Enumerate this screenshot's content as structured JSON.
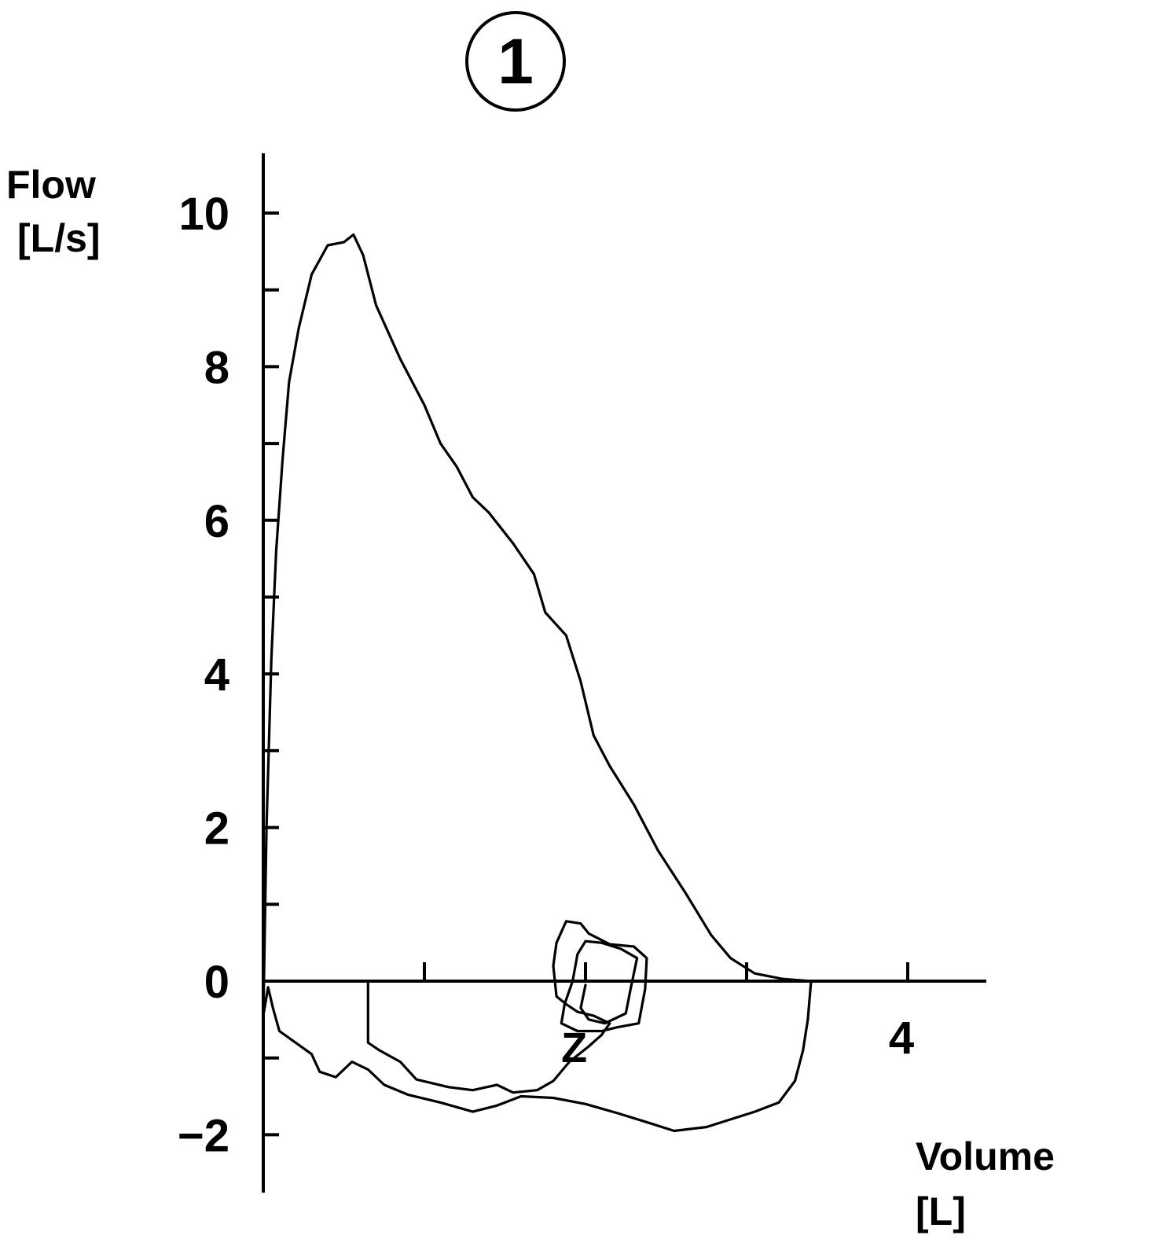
{
  "chart_data": {
    "type": "line",
    "title": "①",
    "xlabel": "Volume",
    "xunit": "[L]",
    "ylabel": "Flow",
    "yunit": "[L/s]",
    "xlim": [
      0,
      4.5
    ],
    "ylim": [
      -2.7,
      10.7
    ],
    "x_tick_values": [
      0,
      1,
      2,
      3,
      4
    ],
    "x_tick_labels": [
      {
        "value": 4,
        "text": "4"
      }
    ],
    "y_tick_values": [
      -2,
      -1,
      0,
      1,
      2,
      3,
      4,
      5,
      6,
      7,
      8,
      9,
      10
    ],
    "y_tick_labels": [
      {
        "value": 10,
        "text": "10"
      },
      {
        "value": 8,
        "text": "8"
      },
      {
        "value": 6,
        "text": "6"
      },
      {
        "value": 4,
        "text": "4"
      },
      {
        "value": 2,
        "text": "2"
      },
      {
        "value": 0,
        "text": "0"
      },
      {
        "value": -2,
        "text": "−2"
      }
    ],
    "annotations": [
      {
        "text": "Z",
        "x": 1.93,
        "y": -0.85
      }
    ],
    "grid": false,
    "series": [
      {
        "points": [
          [
            0,
            -0.5
          ],
          [
            0.02,
            2.0
          ],
          [
            0.05,
            4.2
          ],
          [
            0.08,
            5.6
          ],
          [
            0.12,
            6.8
          ],
          [
            0.16,
            7.8
          ],
          [
            0.22,
            8.5
          ],
          [
            0.3,
            9.2
          ],
          [
            0.4,
            9.58
          ],
          [
            0.5,
            9.62
          ],
          [
            0.56,
            9.72
          ],
          [
            0.62,
            9.45
          ],
          [
            0.7,
            8.8
          ],
          [
            0.85,
            8.1
          ],
          [
            1.0,
            7.5
          ],
          [
            1.1,
            7.0
          ],
          [
            1.2,
            6.7
          ],
          [
            1.3,
            6.3
          ],
          [
            1.4,
            6.1
          ],
          [
            1.55,
            5.7
          ],
          [
            1.68,
            5.3
          ],
          [
            1.75,
            4.8
          ],
          [
            1.88,
            4.5
          ],
          [
            1.97,
            3.9
          ],
          [
            2.05,
            3.2
          ],
          [
            2.15,
            2.8
          ],
          [
            2.3,
            2.3
          ],
          [
            2.45,
            1.7
          ],
          [
            2.62,
            1.15
          ],
          [
            2.78,
            0.6
          ],
          [
            2.9,
            0.3
          ],
          [
            3.05,
            0.1
          ],
          [
            3.22,
            0.03
          ],
          [
            3.4,
            0.0
          ]
        ]
      },
      {
        "points": [
          [
            3.4,
            0.0
          ],
          [
            3.38,
            -0.5
          ],
          [
            3.35,
            -0.9
          ],
          [
            3.3,
            -1.3
          ],
          [
            3.2,
            -1.58
          ],
          [
            3.05,
            -1.7
          ],
          [
            2.9,
            -1.8
          ],
          [
            2.75,
            -1.9
          ],
          [
            2.55,
            -1.95
          ],
          [
            2.4,
            -1.85
          ],
          [
            2.2,
            -1.72
          ],
          [
            2.0,
            -1.6
          ],
          [
            1.8,
            -1.52
          ],
          [
            1.6,
            -1.5
          ],
          [
            1.45,
            -1.62
          ],
          [
            1.3,
            -1.7
          ],
          [
            1.1,
            -1.58
          ],
          [
            0.9,
            -1.48
          ],
          [
            0.75,
            -1.35
          ],
          [
            0.65,
            -1.15
          ],
          [
            0.55,
            -1.05
          ],
          [
            0.45,
            -1.25
          ],
          [
            0.35,
            -1.18
          ],
          [
            0.3,
            -0.95
          ],
          [
            0.2,
            -0.8
          ],
          [
            0.1,
            -0.65
          ],
          [
            0.06,
            -0.35
          ],
          [
            0.03,
            -0.08
          ],
          [
            0.0,
            -0.45
          ],
          [
            0.0,
            0.0
          ]
        ]
      },
      {
        "points": [
          [
            0.65,
            0.0
          ],
          [
            0.65,
            -0.8
          ],
          [
            0.72,
            -0.9
          ],
          [
            0.85,
            -1.05
          ],
          [
            0.95,
            -1.28
          ],
          [
            1.15,
            -1.38
          ],
          [
            1.3,
            -1.42
          ],
          [
            1.45,
            -1.35
          ],
          [
            1.55,
            -1.45
          ],
          [
            1.7,
            -1.42
          ],
          [
            1.8,
            -1.3
          ],
          [
            1.9,
            -1.05
          ],
          [
            2.02,
            -0.85
          ],
          [
            2.1,
            -0.7
          ],
          [
            2.15,
            -0.55
          ],
          [
            2.05,
            -0.45
          ],
          [
            1.95,
            -0.4
          ],
          [
            1.88,
            -0.3
          ],
          [
            1.82,
            -0.2
          ],
          [
            1.8,
            0.2
          ],
          [
            1.82,
            0.5
          ],
          [
            1.88,
            0.78
          ],
          [
            1.97,
            0.75
          ],
          [
            2.02,
            0.62
          ],
          [
            2.15,
            0.48
          ],
          [
            2.3,
            0.45
          ],
          [
            2.38,
            0.3
          ],
          [
            2.37,
            -0.1
          ],
          [
            2.33,
            -0.55
          ],
          [
            2.2,
            -0.6
          ],
          [
            2.1,
            -0.65
          ],
          [
            1.95,
            -0.65
          ],
          [
            1.85,
            -0.55
          ],
          [
            1.87,
            -0.3
          ],
          [
            1.92,
            0.0
          ],
          [
            1.95,
            0.35
          ],
          [
            2.0,
            0.52
          ],
          [
            2.1,
            0.5
          ],
          [
            2.22,
            0.42
          ],
          [
            2.32,
            0.3
          ],
          [
            2.28,
            -0.1
          ],
          [
            2.25,
            -0.42
          ],
          [
            2.12,
            -0.55
          ],
          [
            2.02,
            -0.5
          ],
          [
            1.97,
            -0.35
          ],
          [
            2.0,
            -0.05
          ]
        ]
      }
    ]
  }
}
